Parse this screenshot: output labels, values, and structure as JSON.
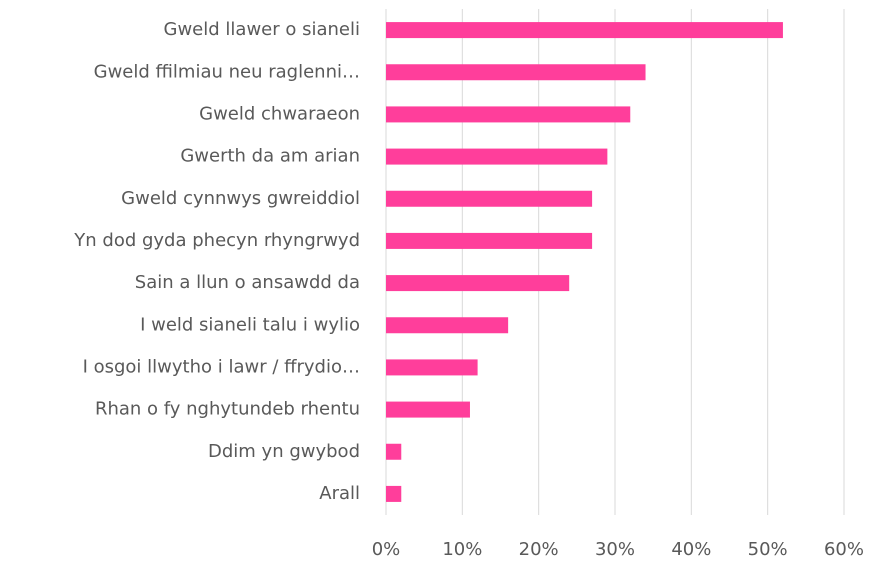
{
  "chart_data": {
    "type": "bar",
    "orientation": "horizontal",
    "categories": [
      "Gweld llawer o sianeli",
      "Gweld ffilmiau neu raglenni…",
      "Gweld chwaraeon",
      "Gwerth da am arian",
      "Gweld cynnwys gwreiddiol",
      "Yn dod gyda phecyn rhyngrwyd",
      "Sain a llun o ansawdd da",
      "I weld sianeli talu i wylio",
      "I osgoi llwytho i lawr / ffrydio…",
      "Rhan o fy nghytundeb rhentu",
      "Ddim yn gwybod",
      "Arall"
    ],
    "values": [
      52,
      34,
      32,
      29,
      27,
      27,
      24,
      16,
      12,
      11,
      2,
      2
    ],
    "color": "#ff3e9b",
    "xlim": [
      0,
      60
    ],
    "xticks": [
      {
        "value": 0,
        "label": "0%"
      },
      {
        "value": 10,
        "label": "10%"
      },
      {
        "value": 20,
        "label": "20%"
      },
      {
        "value": 30,
        "label": "30%"
      },
      {
        "value": 40,
        "label": "40%"
      },
      {
        "value": 50,
        "label": "50%"
      },
      {
        "value": 60,
        "label": "60%"
      }
    ],
    "grid": true
  }
}
